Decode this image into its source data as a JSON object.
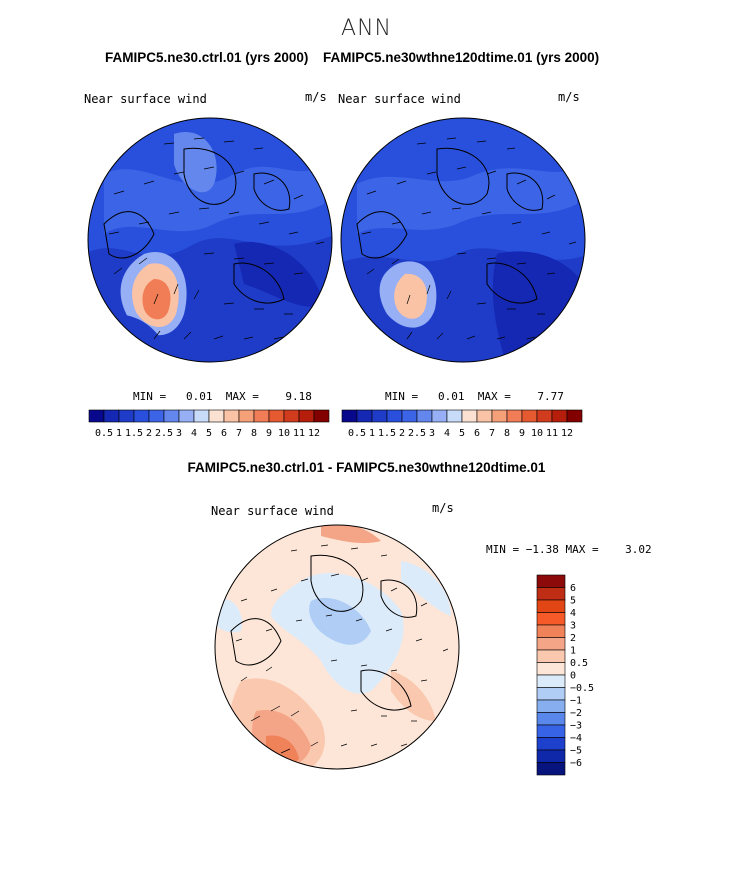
{
  "page": {
    "title": "ANN"
  },
  "panels": [
    {
      "case_title": "FAMIPC5.ne30.ctrl.01 (yrs 2000)",
      "variable": "Near surface wind",
      "units": "m/s",
      "min_label": "MIN =",
      "min_value": "0.01",
      "max_label": "MAX =",
      "max_value": "9.18"
    },
    {
      "case_title": "FAMIPC5.ne30wthne120dtime.01 (yrs 2000)",
      "variable": "Near surface wind",
      "units": "m/s",
      "min_label": "MIN =",
      "min_value": "0.01",
      "max_label": "MAX =",
      "max_value": "7.77"
    }
  ],
  "abs_colorbar": {
    "labels": [
      "0.5",
      "1",
      "1.5",
      "2",
      "2.5",
      "3",
      "4",
      "5",
      "6",
      "7",
      "8",
      "9",
      "10",
      "11",
      "12"
    ],
    "colors": [
      "#08088c",
      "#1428b4",
      "#1e3cc8",
      "#2850dc",
      "#3c64e6",
      "#6487ee",
      "#96aff5",
      "#c8dcfa",
      "#fae1d2",
      "#fac3a5",
      "#f5a078",
      "#f07d55",
      "#e65a32",
      "#d23c1e",
      "#b41e0a",
      "#820000"
    ]
  },
  "difference": {
    "title": "FAMIPC5.ne30.ctrl.01 - FAMIPC5.ne30wthne120dtime.01",
    "variable": "Near surface wind",
    "units": "m/s",
    "min_label": "MIN =",
    "min_value": "−1.38",
    "max_label": "MAX =",
    "max_value": "3.02",
    "colorbar": {
      "labels": [
        "6",
        "5",
        "4",
        "3",
        "2",
        "1",
        "0.5",
        "0",
        "−0.5",
        "−1",
        "−2",
        "−3",
        "−4",
        "−5",
        "−6"
      ],
      "colors": [
        "#8c0a0a",
        "#be2d14",
        "#e14614",
        "#f55a28",
        "#f0825a",
        "#f5a587",
        "#fac8af",
        "#fde6d7",
        "#dcebfa",
        "#afcdf5",
        "#87aff0",
        "#5a87eb",
        "#3764e6",
        "#1e41cd",
        "#0f28aa",
        "#08147d"
      ]
    }
  }
}
